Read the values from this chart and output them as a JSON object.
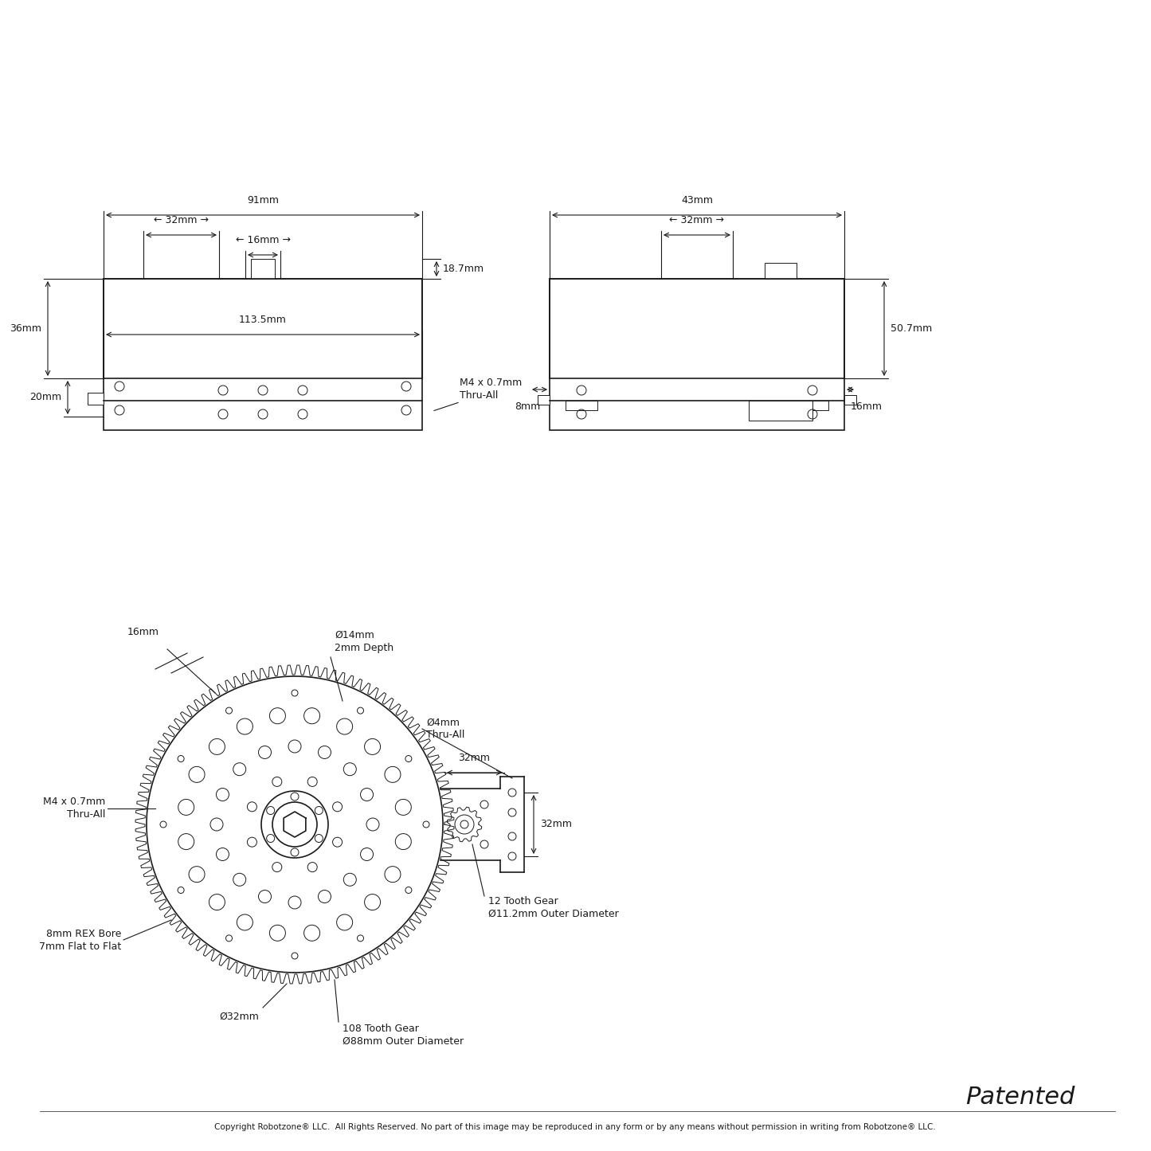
{
  "bg_color": "#ffffff",
  "line_color": "#1a1a1a",
  "text_color": "#1a1a1a",
  "font_family": "DejaVu Sans",
  "annotations": {
    "top_view": {
      "label_14mm": "Ø14mm\n2mm Depth",
      "label_32mm_top": "32mm",
      "label_4mm": "Ø4mm\nThru-All",
      "label_16mm": "16mm",
      "label_m4": "M4 x 0.7mm\nThru-All",
      "label_8mm_rex": "8mm REX Bore\n7mm Flat to Flat",
      "label_32mm_bore": "Ø32mm",
      "label_108tooth": "108 Tooth Gear\nØ88mm Outer Diameter",
      "label_12tooth": "12 Tooth Gear\nØ11.2mm Outer Diameter",
      "label_32mm_right": "32mm"
    },
    "front_view": {
      "label_113_5mm": "113.5mm",
      "label_20mm": "20mm",
      "label_36mm": "36mm",
      "label_m4_front": "M4 x 0.7mm\nThru-All",
      "label_32mm_front": "32mm",
      "label_16mm_front": "16mm",
      "label_91mm": "91mm",
      "label_18_7mm": "18.7mm"
    },
    "side_view": {
      "label_8mm": "8mm",
      "label_16mm": "16mm",
      "label_50_7mm": "50.7mm",
      "label_32mm": "32mm",
      "label_43mm": "43mm"
    }
  },
  "footer_text": "Patented",
  "copyright_text": "Copyright Robotzone® LLC.  All Rights Reserved. No part of this image may be reproduced in any form or by any means without permission in writing from Robotzone® LLC."
}
